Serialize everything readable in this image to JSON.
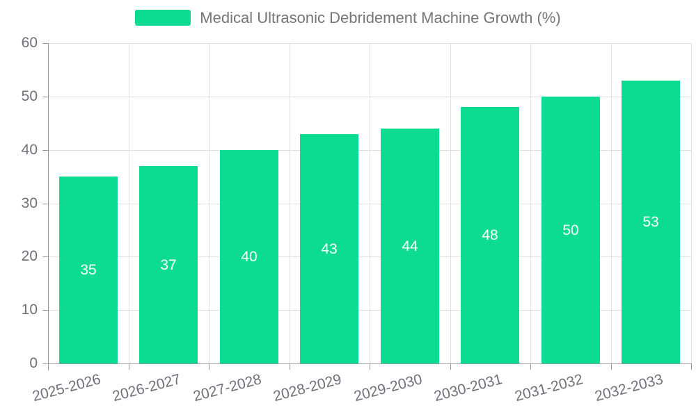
{
  "chart_data": {
    "type": "bar",
    "title": "Medical Ultrasonic Debridement Machine Growth (%)",
    "legend": {
      "label": "Medical Ultrasonic Debridement Machine Growth (%)",
      "position": "top",
      "swatch_color": "#0BDC92"
    },
    "categories": [
      "2025-2026",
      "2026-2027",
      "2027-2028",
      "2028-2029",
      "2029-2030",
      "2030-2031",
      "2031-2032",
      "2032-2033"
    ],
    "values": [
      35,
      37,
      40,
      43,
      44,
      48,
      50,
      53
    ],
    "xlabel": "",
    "ylabel": "",
    "ylim": [
      0,
      60
    ],
    "yticks": [
      0,
      10,
      20,
      30,
      40,
      50,
      60
    ],
    "grid": true,
    "bar_color": "#0BDC92",
    "bar_label_color": "#FFFFFF",
    "axis_color": "#999999",
    "grid_color": "#E0E0E0",
    "tick_label_color": "#6E7079",
    "legend_text_color": "#757575",
    "background_color": "#FFFFFF"
  }
}
